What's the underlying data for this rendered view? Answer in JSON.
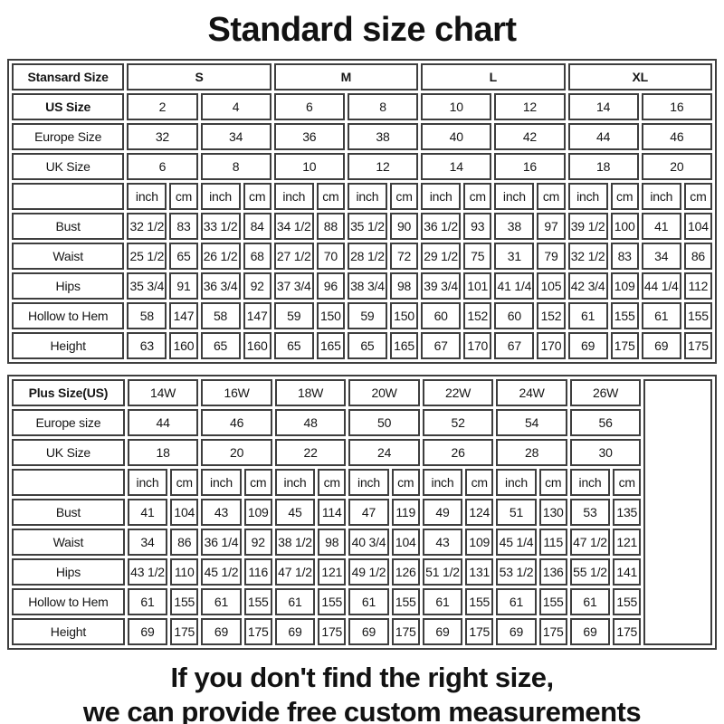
{
  "title": "Standard size chart",
  "footer": {
    "line1": "If you don't find the right size,",
    "line2": "we can provide free custom measurements"
  },
  "colors": {
    "border": "#3e3e3e",
    "text": "#161616",
    "background": "#ffffff"
  },
  "tables": [
    {
      "name": "standard-size-table",
      "empty_last_column": false,
      "rows": [
        {
          "name": "group-header",
          "label": "Stansard Size",
          "label_bold": true,
          "cells_bold": true,
          "cell_span": 4,
          "cells": [
            "S",
            "M",
            "L",
            "XL"
          ]
        },
        {
          "name": "us-size",
          "label": "US Size",
          "label_bold": true,
          "cell_span": 2,
          "cells": [
            "2",
            "4",
            "6",
            "8",
            "10",
            "12",
            "14",
            "16"
          ]
        },
        {
          "name": "europe-size",
          "label": "Europe Size",
          "cell_span": 2,
          "cells": [
            "32",
            "34",
            "36",
            "38",
            "40",
            "42",
            "44",
            "46"
          ]
        },
        {
          "name": "uk-size",
          "label": "UK Size",
          "cell_span": 2,
          "cells": [
            "6",
            "8",
            "10",
            "12",
            "14",
            "16",
            "18",
            "20"
          ]
        },
        {
          "name": "units",
          "label": "",
          "cell_span": 1,
          "cells": [
            "inch",
            "cm",
            "inch",
            "cm",
            "inch",
            "cm",
            "inch",
            "cm",
            "inch",
            "cm",
            "inch",
            "cm",
            "inch",
            "cm",
            "inch",
            "cm"
          ]
        },
        {
          "name": "bust",
          "label": "Bust",
          "cell_span": 1,
          "cells": [
            "32 1/2",
            "83",
            "33 1/2",
            "84",
            "34 1/2",
            "88",
            "35 1/2",
            "90",
            "36 1/2",
            "93",
            "38",
            "97",
            "39 1/2",
            "100",
            "41",
            "104"
          ]
        },
        {
          "name": "waist",
          "label": "Waist",
          "cell_span": 1,
          "cells": [
            "25 1/2",
            "65",
            "26 1/2",
            "68",
            "27 1/2",
            "70",
            "28 1/2",
            "72",
            "29 1/2",
            "75",
            "31",
            "79",
            "32 1/2",
            "83",
            "34",
            "86"
          ]
        },
        {
          "name": "hips",
          "label": "Hips",
          "cell_span": 1,
          "cells": [
            "35 3/4",
            "91",
            "36 3/4",
            "92",
            "37 3/4",
            "96",
            "38 3/4",
            "98",
            "39 3/4",
            "101",
            "41 1/4",
            "105",
            "42 3/4",
            "109",
            "44 1/4",
            "112"
          ]
        },
        {
          "name": "hollow-to-hem",
          "label": "Hollow to Hem",
          "cell_span": 1,
          "cells": [
            "58",
            "147",
            "58",
            "147",
            "59",
            "150",
            "59",
            "150",
            "60",
            "152",
            "60",
            "152",
            "61",
            "155",
            "61",
            "155"
          ]
        },
        {
          "name": "height",
          "label": "Height",
          "cell_span": 1,
          "cells": [
            "63",
            "160",
            "65",
            "160",
            "65",
            "165",
            "65",
            "165",
            "67",
            "170",
            "67",
            "170",
            "69",
            "175",
            "69",
            "175"
          ]
        }
      ]
    },
    {
      "name": "plus-size-table",
      "empty_last_column": true,
      "rows": [
        {
          "name": "plus-size",
          "label": "Plus Size(US)",
          "label_bold": true,
          "cell_span": 2,
          "cells": [
            "14W",
            "16W",
            "18W",
            "20W",
            "22W",
            "24W",
            "26W"
          ]
        },
        {
          "name": "europe-size",
          "label": "Europe size",
          "cell_span": 2,
          "cells": [
            "44",
            "46",
            "48",
            "50",
            "52",
            "54",
            "56"
          ]
        },
        {
          "name": "uk-size",
          "label": "UK Size",
          "cell_span": 2,
          "cells": [
            "18",
            "20",
            "22",
            "24",
            "26",
            "28",
            "30"
          ]
        },
        {
          "name": "units",
          "label": "",
          "cell_span": 1,
          "cells": [
            "inch",
            "cm",
            "inch",
            "cm",
            "inch",
            "cm",
            "inch",
            "cm",
            "inch",
            "cm",
            "inch",
            "cm",
            "inch",
            "cm"
          ]
        },
        {
          "name": "bust",
          "label": "Bust",
          "cell_span": 1,
          "cells": [
            "41",
            "104",
            "43",
            "109",
            "45",
            "114",
            "47",
            "119",
            "49",
            "124",
            "51",
            "130",
            "53",
            "135"
          ]
        },
        {
          "name": "waist",
          "label": "Waist",
          "cell_span": 1,
          "cells": [
            "34",
            "86",
            "36 1/4",
            "92",
            "38 1/2",
            "98",
            "40 3/4",
            "104",
            "43",
            "109",
            "45 1/4",
            "115",
            "47 1/2",
            "121"
          ]
        },
        {
          "name": "hips",
          "label": "Hips",
          "cell_span": 1,
          "cells": [
            "43 1/2",
            "110",
            "45 1/2",
            "116",
            "47 1/2",
            "121",
            "49 1/2",
            "126",
            "51 1/2",
            "131",
            "53 1/2",
            "136",
            "55 1/2",
            "141"
          ]
        },
        {
          "name": "hollow-to-hem",
          "label": "Hollow to Hem",
          "cell_span": 1,
          "cells": [
            "61",
            "155",
            "61",
            "155",
            "61",
            "155",
            "61",
            "155",
            "61",
            "155",
            "61",
            "155",
            "61",
            "155"
          ]
        },
        {
          "name": "height",
          "label": "Height",
          "cell_span": 1,
          "cells": [
            "69",
            "175",
            "69",
            "175",
            "69",
            "175",
            "69",
            "175",
            "69",
            "175",
            "69",
            "175",
            "69",
            "175"
          ]
        }
      ]
    }
  ]
}
